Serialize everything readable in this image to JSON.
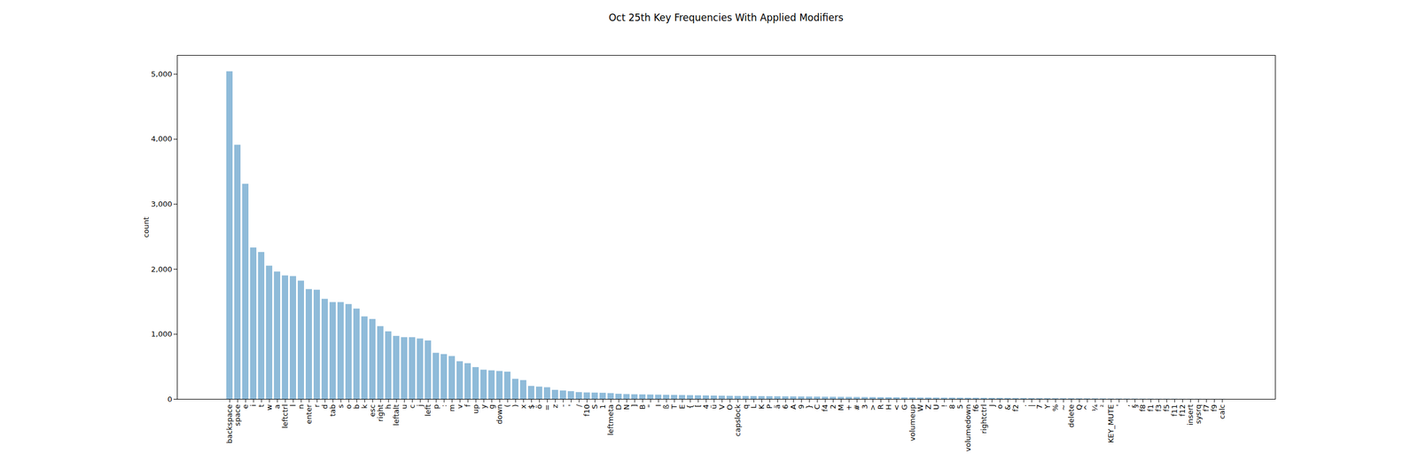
{
  "chart_data": {
    "type": "bar",
    "title": "Oct 25th Key Frequencies With Applied Modifiers",
    "y_label": "count",
    "categories": [
      "backspace",
      "space",
      "e",
      "i",
      "t",
      "w",
      "a",
      "leftctrl",
      "l",
      "n",
      "enter",
      "r",
      "d",
      "tab",
      "s",
      "o",
      "b",
      "k",
      "esc",
      "right",
      "h",
      "leftalt",
      "u",
      "c",
      "j",
      "left",
      "p",
      ":",
      "m",
      "v",
      "f",
      "up",
      "y",
      "g",
      "down",
      "(",
      ")",
      "x",
      "$",
      "ö",
      "=",
      "z",
      "-",
      "'",
      "/",
      "f10",
      "S",
      "1",
      "leftmeta",
      "D",
      "N",
      "]",
      "B",
      "\"",
      "I",
      "ß",
      "T",
      "E",
      "{",
      "[",
      "4",
      "ü",
      "V",
      "O",
      "capslock",
      "q",
      "L",
      "K",
      "P",
      "ä",
      "6",
      "A",
      "9",
      "}",
      "C",
      "f4",
      "2",
      "M",
      "+",
      "#",
      "3",
      ">",
      "R",
      "H",
      "<",
      "G",
      "volumeup",
      "W",
      "Z",
      "U",
      "!",
      "8",
      "5",
      "volumedown",
      "f6",
      "rightctrl",
      "J",
      "o",
      "&",
      "f2",
      ".",
      "|",
      "7",
      "Y",
      "%",
      "~",
      "delete",
      "Q",
      "^",
      "¼",
      "²",
      "KEY_MUTE",
      "'",
      ",",
      "§",
      "f8",
      "f1",
      "f3",
      "f5",
      "f11",
      "f12",
      "insert",
      "sysrq",
      "f7",
      "f9",
      "calc"
    ],
    "values": [
      5040,
      3910,
      3310,
      2330,
      2260,
      2050,
      1960,
      1900,
      1890,
      1820,
      1690,
      1680,
      1540,
      1490,
      1490,
      1460,
      1390,
      1270,
      1230,
      1120,
      1040,
      970,
      950,
      950,
      930,
      900,
      710,
      690,
      660,
      580,
      550,
      490,
      450,
      440,
      430,
      420,
      310,
      290,
      200,
      190,
      180,
      140,
      130,
      120,
      105,
      100,
      98,
      95,
      90,
      80,
      75,
      72,
      70,
      68,
      66,
      64,
      62,
      60,
      58,
      56,
      54,
      52,
      50,
      48,
      46,
      45,
      44,
      43,
      42,
      41,
      40,
      39,
      38,
      37,
      36,
      34,
      33,
      32,
      31,
      30,
      29,
      28,
      27,
      26,
      25,
      24,
      23,
      22,
      22,
      21,
      20,
      20,
      19,
      18,
      18,
      17,
      16,
      16,
      15,
      14,
      14,
      13,
      12,
      12,
      11,
      10,
      10,
      9,
      8,
      8,
      7,
      6,
      6,
      5,
      5,
      4,
      4,
      3,
      3,
      3,
      2,
      2,
      2,
      1,
      1,
      1
    ],
    "color": "#1f77b4",
    "ylim": [
      0,
      5290
    ],
    "yticks": [
      0,
      1000,
      2000,
      3000,
      4000,
      5000
    ],
    "grid": false
  }
}
